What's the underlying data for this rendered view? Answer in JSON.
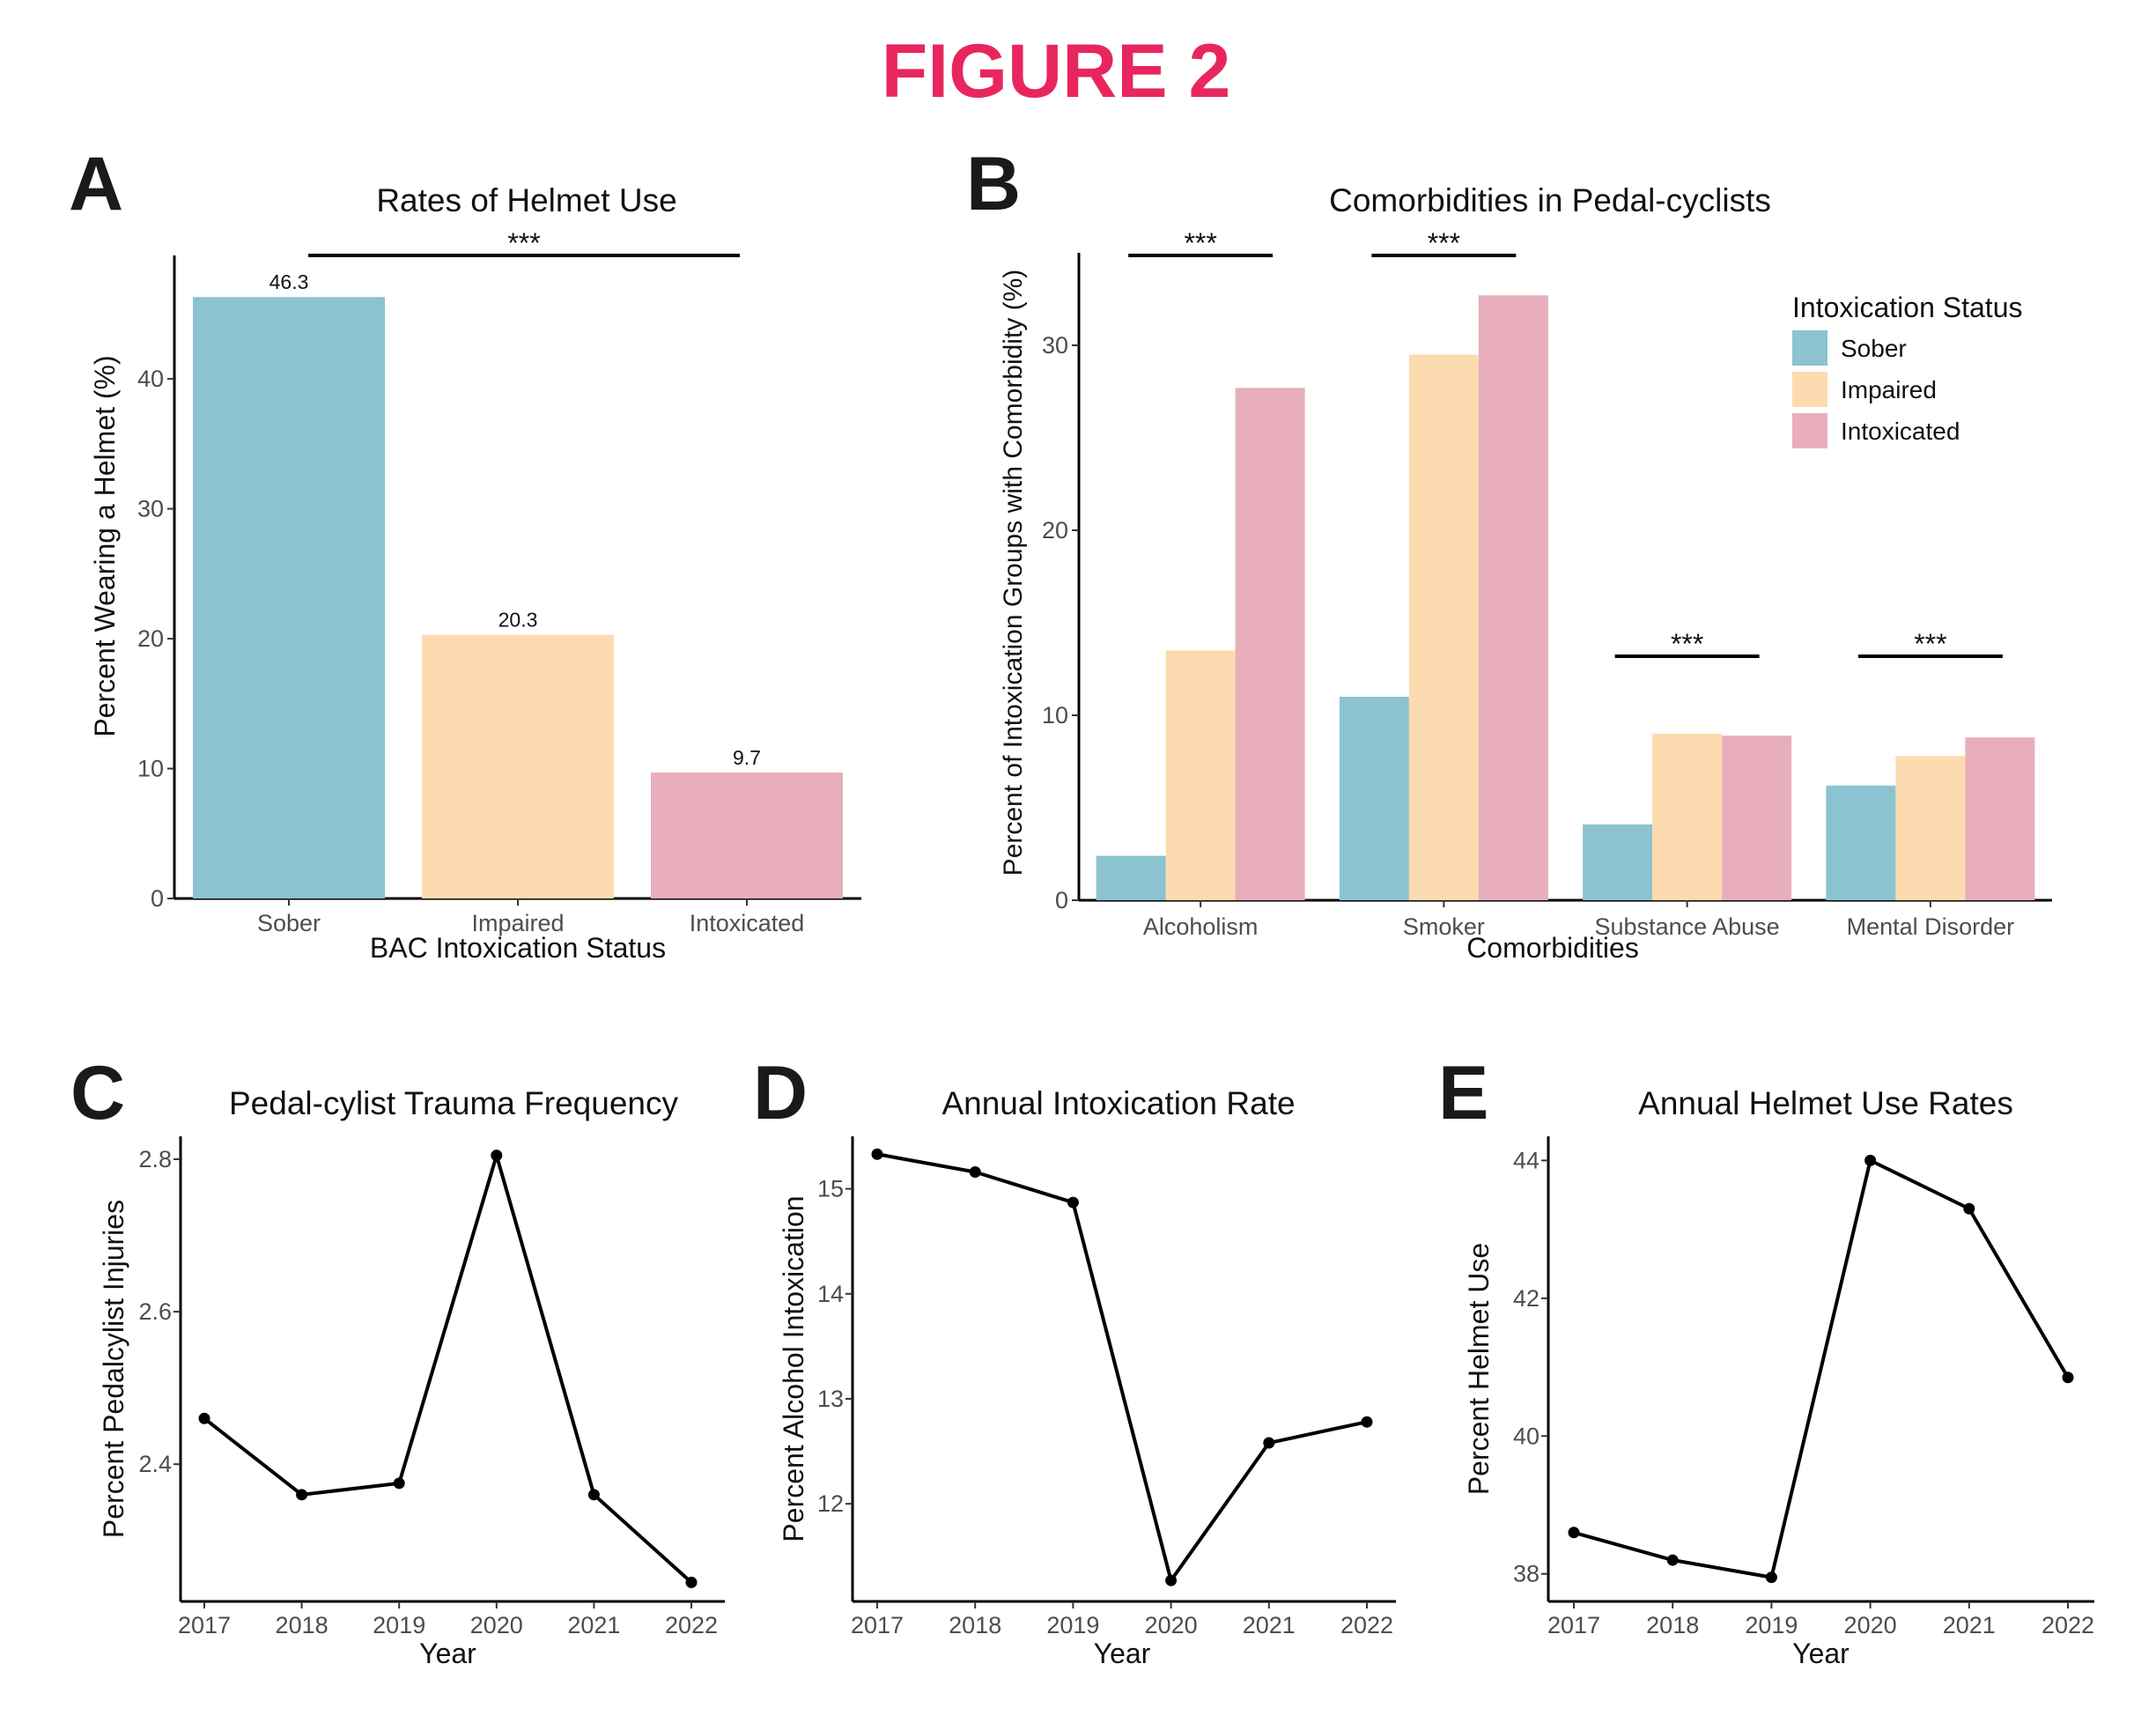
{
  "figure_title": "FIGURE 2",
  "colors": {
    "title": "#e8265e",
    "sober": "#8bc3d0",
    "impaired": "#fddbb0",
    "intoxicated": "#e8aebc",
    "line": "#000000"
  },
  "panels": {
    "A": {
      "letter": "A",
      "significance": "***"
    },
    "B": {
      "letter": "B",
      "significance": [
        "***",
        "***",
        "***",
        "***"
      ]
    },
    "C": {
      "letter": "C"
    },
    "D": {
      "letter": "D"
    },
    "E": {
      "letter": "E"
    }
  },
  "chart_data": [
    {
      "id": "A",
      "type": "bar",
      "title": "Rates of Helmet Use",
      "xlabel": "BAC Intoxication Status",
      "ylabel": "Percent Wearing a Helmet (%)",
      "categories": [
        "Sober",
        "Impaired",
        "Intoxicated"
      ],
      "values": [
        46.3,
        20.3,
        9.7
      ],
      "data_labels": [
        "46.3",
        "20.3",
        "9.7"
      ],
      "bar_colors": [
        "#8bc3d0",
        "#fddbb0",
        "#e8aebc"
      ],
      "yticks": [
        "0",
        "10",
        "20",
        "30",
        "40"
      ],
      "ylim": [
        0,
        49.5
      ],
      "grid": false
    },
    {
      "id": "B",
      "type": "bar",
      "title": "Comorbidities in Pedal-cyclists",
      "xlabel": "Comorbidities",
      "ylabel": "Percent of Intoxication Groups with Comorbidity (%)",
      "categories": [
        "Alcoholism",
        "Smoker",
        "Substance Abuse",
        "Mental Disorder"
      ],
      "series": [
        {
          "name": "Sober",
          "color": "#8bc3d0",
          "values": [
            2.4,
            11.0,
            4.1,
            6.2
          ]
        },
        {
          "name": "Impaired",
          "color": "#fddbb0",
          "values": [
            13.5,
            29.5,
            9.0,
            7.8
          ]
        },
        {
          "name": "Intoxicated",
          "color": "#e8aebc",
          "values": [
            27.7,
            32.7,
            8.9,
            8.8
          ]
        }
      ],
      "legend": {
        "title": "Intoxication Status",
        "position": "top-right"
      },
      "yticks": [
        "0",
        "10",
        "20",
        "30"
      ],
      "ylim": [
        0,
        35
      ],
      "grid": false
    },
    {
      "id": "C",
      "type": "line",
      "title": "Pedal-cylist Trauma Frequency",
      "xlabel": "Year",
      "ylabel": "Percent Pedalcylist Injuries",
      "x": [
        "2017",
        "2018",
        "2019",
        "2020",
        "2021",
        "2022"
      ],
      "values": [
        2.46,
        2.36,
        2.375,
        2.805,
        2.36,
        2.245
      ],
      "yticks": [
        "2.4",
        "2.6",
        "2.8"
      ],
      "ytick_values": [
        2.4,
        2.6,
        2.8
      ],
      "ylim": [
        2.22,
        2.83
      ],
      "grid": false
    },
    {
      "id": "D",
      "type": "line",
      "title": "Annual Intoxication Rate",
      "xlabel": "Year",
      "ylabel": "Percent Alcohol Intoxication",
      "x": [
        "2017",
        "2018",
        "2019",
        "2020",
        "2021",
        "2022"
      ],
      "values": [
        15.33,
        15.16,
        14.87,
        11.27,
        12.58,
        12.78
      ],
      "yticks": [
        "12",
        "13",
        "14",
        "15"
      ],
      "ytick_values": [
        12,
        13,
        14,
        15
      ],
      "ylim": [
        11.07,
        15.5
      ],
      "grid": false
    },
    {
      "id": "E",
      "type": "line",
      "title": "Annual Helmet Use Rates",
      "xlabel": "Year",
      "ylabel": "Percent Helmet Use",
      "x": [
        "2017",
        "2018",
        "2019",
        "2020",
        "2021",
        "2022"
      ],
      "values": [
        38.6,
        38.2,
        37.95,
        44.0,
        43.3,
        40.85
      ],
      "yticks": [
        "38",
        "40",
        "42",
        "44"
      ],
      "ytick_values": [
        38,
        40,
        42,
        44
      ],
      "ylim": [
        37.6,
        44.35
      ],
      "grid": false
    }
  ]
}
